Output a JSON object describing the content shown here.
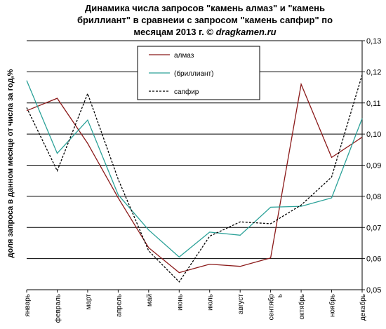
{
  "chart_data": {
    "type": "line",
    "title_lines": [
      "Динамика числа запросов \"камень алмаз\" и \"камень",
      "бриллиант\" в сравнеии  с запросом \"камень сапфир\" по",
      "месяцам 2013 г. © dragkamen.ru"
    ],
    "ylabel": "доля запроса в данном месяце от числа за год,%",
    "xlabel": "",
    "categories": [
      "январь",
      "февраль",
      "март",
      "апрель",
      "май",
      "июнь",
      "июль",
      "август",
      "сентябрь",
      "октябрь",
      "ноябрь",
      "декабрь"
    ],
    "category_label_lines": [
      [
        "январь"
      ],
      [
        "февраль"
      ],
      [
        "март"
      ],
      [
        "апрель"
      ],
      [
        "май"
      ],
      [
        "июнь"
      ],
      [
        "июль"
      ],
      [
        "август"
      ],
      [
        "сентябр",
        "ь"
      ],
      [
        "октябрь"
      ],
      [
        "ноябрь"
      ],
      [
        "декабрь"
      ]
    ],
    "ylim": [
      0.05,
      0.13
    ],
    "yticks": [
      "0,05",
      "0,06",
      "0,07",
      "0,08",
      "0,09",
      "0,10",
      "0,11",
      "0,12",
      "0,13"
    ],
    "y_axis_side": "right",
    "grid": "horizontal",
    "legend_position": "top-center",
    "series": [
      {
        "name": "алмаз",
        "color": "#8b1a1a",
        "dash": "solid",
        "values": [
          0.1075,
          0.1115,
          0.097,
          0.0795,
          0.0635,
          0.0555,
          0.0582,
          0.0575,
          0.0602,
          0.116,
          0.0925,
          0.099
        ]
      },
      {
        "name": "(бриллиант)",
        "color": "#2aa198",
        "dash": "solid",
        "values": [
          0.1172,
          0.0938,
          0.1045,
          0.0805,
          0.0692,
          0.0605,
          0.0685,
          0.0675,
          0.0765,
          0.0768,
          0.0795,
          0.105
        ]
      },
      {
        "name": "сапфир",
        "color": "#000000",
        "dash": "dashed",
        "values": [
          0.1085,
          0.0882,
          0.113,
          0.0855,
          0.0625,
          0.0525,
          0.0672,
          0.0718,
          0.0712,
          0.0772,
          0.0862,
          0.119
        ]
      }
    ]
  }
}
